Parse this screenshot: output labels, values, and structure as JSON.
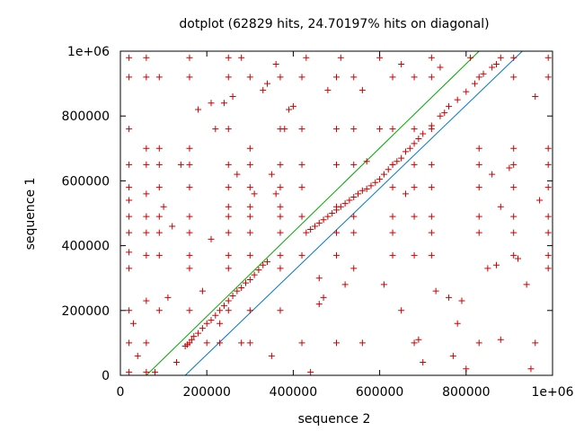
{
  "chart_data": {
    "type": "scatter",
    "title": "dotplot (62829 hits, 24.70197% hits on diagonal)",
    "xlabel": "sequence 2",
    "ylabel": "sequence 1",
    "xlim": [
      0,
      1000000
    ],
    "ylim": [
      0,
      1000000
    ],
    "xticks": [
      {
        "value": 0,
        "label": "0"
      },
      {
        "value": 200000,
        "label": "200000"
      },
      {
        "value": 400000,
        "label": "400000"
      },
      {
        "value": 600000,
        "label": "600000"
      },
      {
        "value": 800000,
        "label": "800000"
      },
      {
        "value": 1000000,
        "label": "1e+06"
      }
    ],
    "yticks": [
      {
        "value": 0,
        "label": "0"
      },
      {
        "value": 200000,
        "label": "200000"
      },
      {
        "value": 400000,
        "label": "400000"
      },
      {
        "value": 600000,
        "label": "600000"
      },
      {
        "value": 800000,
        "label": "800000"
      },
      {
        "value": 1000000,
        "label": "1e+06"
      }
    ],
    "grid": false,
    "colors": {
      "hits": "#cc0000",
      "upper_line": "#00aa00",
      "lower_line": "#0077cc"
    },
    "lines": [
      {
        "name": "upper",
        "x": [
          60000,
          830000
        ],
        "y": [
          0,
          1000000
        ]
      },
      {
        "name": "lower",
        "x": [
          150000,
          930000
        ],
        "y": [
          0,
          1000000
        ]
      }
    ],
    "series": [
      {
        "name": "hits",
        "x": [
          150000,
          155000,
          160000,
          165000,
          170000,
          180000,
          190000,
          200000,
          210000,
          220000,
          230000,
          240000,
          250000,
          260000,
          270000,
          280000,
          290000,
          300000,
          310000,
          320000,
          330000,
          340000,
          430000,
          440000,
          450000,
          460000,
          470000,
          480000,
          490000,
          500000,
          510000,
          520000,
          530000,
          540000,
          550000,
          560000,
          570000,
          580000,
          590000,
          600000,
          610000,
          620000,
          630000,
          640000,
          650000,
          660000,
          670000,
          680000,
          690000,
          700000,
          720000,
          740000,
          750000,
          760000,
          780000,
          800000,
          820000,
          840000,
          860000,
          870000,
          880000,
          20000,
          20000,
          20000,
          20000,
          20000,
          20000,
          20000,
          20000,
          20000,
          20000,
          20000,
          20000,
          20000,
          60000,
          60000,
          60000,
          60000,
          60000,
          60000,
          60000,
          60000,
          60000,
          60000,
          60000,
          90000,
          90000,
          90000,
          90000,
          90000,
          90000,
          90000,
          90000,
          160000,
          160000,
          160000,
          160000,
          160000,
          160000,
          160000,
          160000,
          160000,
          160000,
          250000,
          250000,
          250000,
          250000,
          250000,
          250000,
          250000,
          250000,
          250000,
          250000,
          250000,
          300000,
          300000,
          300000,
          300000,
          300000,
          300000,
          300000,
          300000,
          300000,
          300000,
          370000,
          370000,
          370000,
          370000,
          370000,
          370000,
          370000,
          370000,
          370000,
          370000,
          420000,
          420000,
          420000,
          420000,
          420000,
          420000,
          420000,
          500000,
          500000,
          500000,
          500000,
          500000,
          500000,
          500000,
          540000,
          540000,
          540000,
          540000,
          540000,
          540000,
          630000,
          630000,
          630000,
          630000,
          630000,
          630000,
          630000,
          680000,
          680000,
          680000,
          680000,
          680000,
          680000,
          680000,
          720000,
          720000,
          720000,
          720000,
          720000,
          720000,
          720000,
          720000,
          830000,
          830000,
          830000,
          830000,
          830000,
          830000,
          830000,
          910000,
          910000,
          910000,
          910000,
          910000,
          910000,
          910000,
          910000,
          990000,
          990000,
          990000,
          990000,
          990000,
          990000,
          990000,
          990000,
          990000,
          30000,
          40000,
          100000,
          120000,
          200000,
          210000,
          230000,
          280000,
          330000,
          350000,
          360000,
          390000,
          440000,
          460000,
          560000,
          600000,
          650000,
          700000,
          760000,
          780000,
          800000,
          850000,
          880000,
          900000,
          950000,
          970000,
          110000,
          140000,
          180000,
          220000,
          240000,
          260000,
          280000,
          340000,
          360000,
          400000,
          460000,
          480000,
          520000,
          560000,
          600000,
          660000,
          740000,
          790000,
          860000,
          880000,
          940000,
          960000,
          80000,
          130000,
          190000,
          210000,
          230000,
          270000,
          310000,
          350000,
          380000,
          430000,
          470000,
          510000,
          570000,
          610000,
          650000,
          690000,
          730000,
          770000,
          810000,
          870000,
          920000,
          960000
        ],
        "y": [
          90000,
          95000,
          100000,
          110000,
          120000,
          130000,
          145000,
          160000,
          170000,
          185000,
          200000,
          215000,
          230000,
          245000,
          260000,
          270000,
          285000,
          295000,
          310000,
          325000,
          340000,
          350000,
          440000,
          450000,
          460000,
          470000,
          480000,
          490000,
          500000,
          510000,
          520000,
          530000,
          540000,
          550000,
          560000,
          570000,
          575000,
          585000,
          595000,
          605000,
          620000,
          635000,
          650000,
          660000,
          670000,
          690000,
          700000,
          715000,
          730000,
          745000,
          770000,
          800000,
          810000,
          830000,
          850000,
          875000,
          900000,
          930000,
          950000,
          960000,
          980000,
          980000,
          920000,
          760000,
          650000,
          580000,
          540000,
          490000,
          440000,
          380000,
          330000,
          200000,
          100000,
          10000,
          980000,
          920000,
          700000,
          650000,
          560000,
          490000,
          440000,
          370000,
          230000,
          100000,
          10000,
          920000,
          700000,
          650000,
          580000,
          490000,
          440000,
          370000,
          200000,
          980000,
          920000,
          700000,
          650000,
          580000,
          490000,
          440000,
          370000,
          330000,
          200000,
          980000,
          920000,
          760000,
          650000,
          580000,
          520000,
          490000,
          440000,
          370000,
          330000,
          200000,
          920000,
          700000,
          650000,
          580000,
          520000,
          490000,
          440000,
          370000,
          200000,
          100000,
          920000,
          760000,
          650000,
          580000,
          520000,
          490000,
          440000,
          370000,
          330000,
          200000,
          920000,
          760000,
          650000,
          580000,
          490000,
          370000,
          100000,
          920000,
          760000,
          650000,
          520000,
          440000,
          370000,
          100000,
          920000,
          760000,
          650000,
          490000,
          440000,
          330000,
          920000,
          760000,
          650000,
          580000,
          490000,
          440000,
          370000,
          920000,
          760000,
          650000,
          580000,
          490000,
          370000,
          100000,
          980000,
          920000,
          760000,
          650000,
          580000,
          490000,
          440000,
          370000,
          920000,
          700000,
          650000,
          580000,
          490000,
          440000,
          100000,
          980000,
          920000,
          700000,
          650000,
          580000,
          490000,
          440000,
          370000,
          980000,
          920000,
          700000,
          650000,
          580000,
          490000,
          440000,
          370000,
          330000,
          160000,
          60000,
          520000,
          460000,
          100000,
          420000,
          160000,
          980000,
          880000,
          60000,
          560000,
          820000,
          10000,
          300000,
          880000,
          980000,
          200000,
          40000,
          240000,
          160000,
          20000,
          330000,
          520000,
          640000,
          20000,
          540000,
          240000,
          650000,
          820000,
          760000,
          840000,
          860000,
          100000,
          900000,
          960000,
          830000,
          220000,
          880000,
          280000,
          100000,
          760000,
          560000,
          950000,
          230000,
          620000,
          110000,
          280000,
          860000,
          10000,
          40000,
          260000,
          840000,
          100000,
          620000,
          560000,
          620000,
          760000,
          980000,
          240000,
          980000,
          660000,
          280000,
          960000,
          110000,
          260000,
          60000,
          980000,
          340000,
          360000,
          100000
        ]
      }
    ]
  }
}
